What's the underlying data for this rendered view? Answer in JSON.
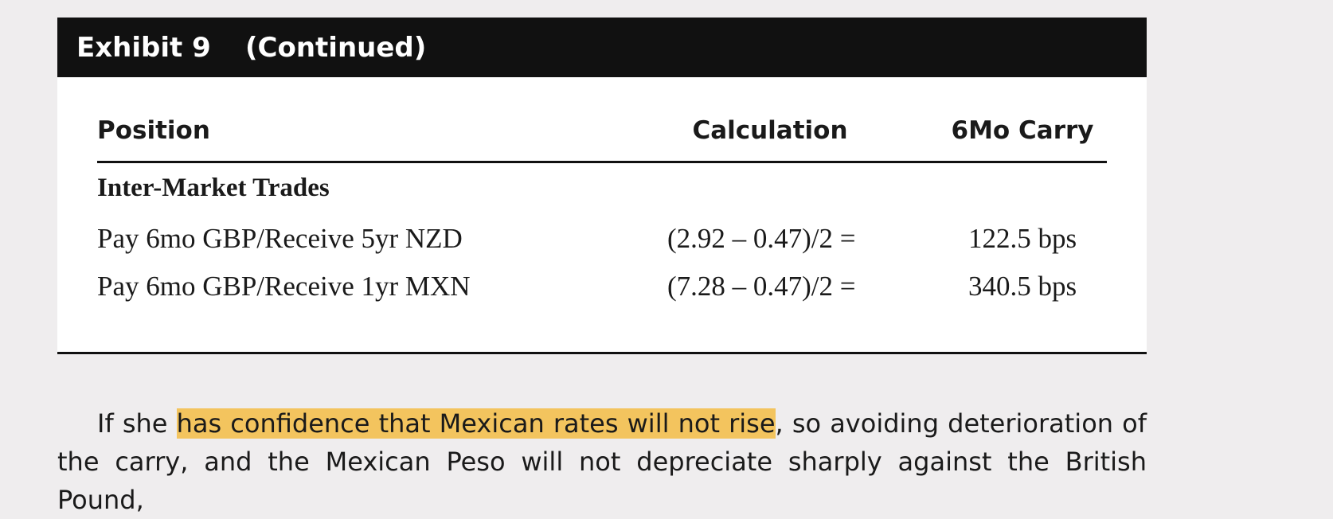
{
  "exhibit": {
    "label": "Exhibit 9",
    "continued": "(Continued)"
  },
  "table": {
    "headers": [
      "Position",
      "Calculation",
      "6Mo Carry"
    ],
    "section": "Inter-Market Trades",
    "rows": [
      [
        "Pay 6mo GBP/Receive 5yr NZD",
        "(2.92 – 0.47)/2 =",
        "122.5 bps"
      ],
      [
        "Pay 6mo GBP/Receive 1yr MXN",
        "(7.28 – 0.47)/2 =",
        "340.5 bps"
      ]
    ]
  },
  "paragraph": {
    "before": "If she ",
    "highlight": "has confidence that Mexican rates will not rise",
    "after": ", so avoiding deterioration of the carry, and the Mexican Peso will not depreciate sharply against the British Pound,"
  }
}
